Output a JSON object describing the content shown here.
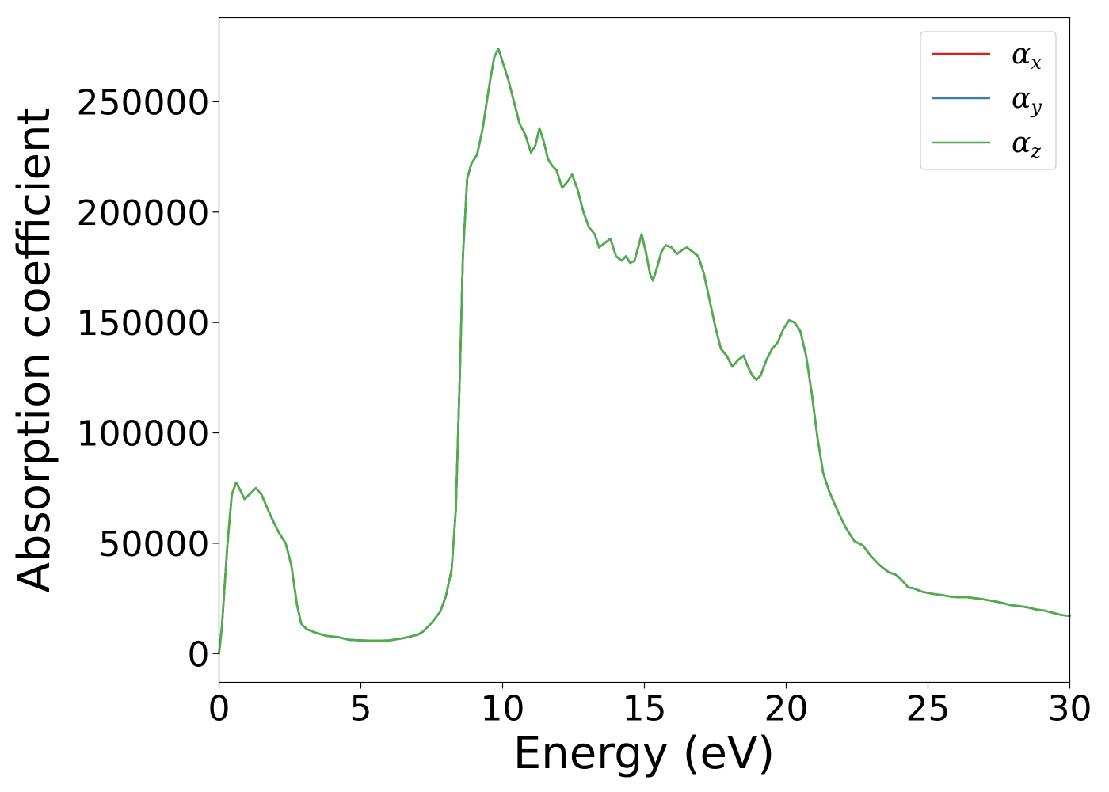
{
  "chart_data": {
    "type": "line",
    "title": "",
    "xlabel": "Energy (eV)",
    "ylabel": "Absorption coefficient",
    "xlim": [
      0,
      30
    ],
    "ylim": [
      -13000,
      288000
    ],
    "xticks": [
      0,
      5,
      10,
      15,
      20,
      25,
      30
    ],
    "yticks": [
      0,
      50000,
      100000,
      150000,
      200000,
      250000
    ],
    "grid": false,
    "legend_position": "top-right",
    "series": [
      {
        "name": "α",
        "subscript": "x",
        "color": "#e41a1c",
        "curve": "alpha"
      },
      {
        "name": "α",
        "subscript": "y",
        "color": "#377eb8",
        "curve": "alpha"
      },
      {
        "name": "α",
        "subscript": "z",
        "color": "#4daf4a",
        "curve": "alpha"
      }
    ],
    "curves": {
      "alpha": {
        "x": [
          0,
          0.1,
          0.3,
          0.45,
          0.6,
          0.75,
          0.9,
          1.1,
          1.3,
          1.5,
          1.8,
          2.1,
          2.35,
          2.55,
          2.75,
          2.9,
          3.1,
          3.4,
          3.8,
          4.2,
          4.6,
          5.0,
          5.5,
          6.0,
          6.5,
          7.0,
          7.2,
          7.5,
          7.8,
          8.0,
          8.2,
          8.35,
          8.5,
          8.6,
          8.75,
          8.9,
          9.1,
          9.3,
          9.5,
          9.7,
          9.85,
          10.0,
          10.2,
          10.4,
          10.6,
          10.8,
          11.0,
          11.15,
          11.3,
          11.45,
          11.6,
          11.75,
          11.9,
          12.1,
          12.3,
          12.45,
          12.65,
          12.85,
          13.05,
          13.25,
          13.4,
          13.6,
          13.8,
          14.0,
          14.2,
          14.35,
          14.5,
          14.65,
          14.8,
          14.9,
          15.05,
          15.2,
          15.3,
          15.45,
          15.6,
          15.75,
          15.95,
          16.15,
          16.35,
          16.5,
          16.7,
          16.9,
          17.1,
          17.3,
          17.5,
          17.7,
          17.9,
          18.1,
          18.3,
          18.5,
          18.65,
          18.8,
          18.95,
          19.1,
          19.3,
          19.5,
          19.7,
          19.9,
          20.1,
          20.3,
          20.5,
          20.7,
          20.9,
          21.1,
          21.3,
          21.5,
          21.8,
          22.1,
          22.4,
          22.7,
          23.0,
          23.3,
          23.6,
          23.9,
          24.1,
          24.3,
          24.5,
          24.8,
          25.0,
          25.2,
          25.5,
          25.8,
          26.1,
          26.4,
          26.7,
          27.0,
          27.3,
          27.6,
          27.9,
          28.2,
          28.5,
          28.8,
          29.1,
          29.4,
          29.7,
          30.0
        ],
        "y": [
          0,
          12000,
          50000,
          72000,
          77500,
          74000,
          70000,
          72500,
          75000,
          72000,
          63000,
          55000,
          50000,
          40000,
          22000,
          13500,
          11000,
          9500,
          8000,
          7500,
          6200,
          6000,
          5800,
          6000,
          7000,
          8500,
          10000,
          14000,
          19000,
          26000,
          38000,
          65000,
          130000,
          180000,
          215000,
          222000,
          226000,
          238000,
          255000,
          270000,
          274000,
          268000,
          260000,
          250000,
          240000,
          235000,
          227000,
          230000,
          238000,
          232000,
          224000,
          221000,
          219000,
          211000,
          214000,
          217000,
          210000,
          200000,
          193000,
          190000,
          184000,
          186000,
          188000,
          180000,
          178000,
          180000,
          177000,
          178000,
          185000,
          190000,
          182000,
          172000,
          169000,
          175000,
          182000,
          185000,
          184000,
          181000,
          183000,
          184000,
          182000,
          180000,
          172000,
          160000,
          148000,
          138000,
          135000,
          130000,
          133000,
          135000,
          130000,
          126000,
          124000,
          126000,
          133000,
          138000,
          141000,
          147000,
          151000,
          150000,
          146000,
          135000,
          118000,
          98000,
          82000,
          74000,
          65000,
          57000,
          51000,
          49000,
          44000,
          40000,
          37000,
          35500,
          33000,
          30000,
          29500,
          28000,
          27500,
          27000,
          26500,
          25800,
          25500,
          25500,
          25000,
          24500,
          23800,
          23000,
          22000,
          21500,
          21000,
          20000,
          19500,
          18500,
          17500,
          17000
        ]
      }
    }
  }
}
